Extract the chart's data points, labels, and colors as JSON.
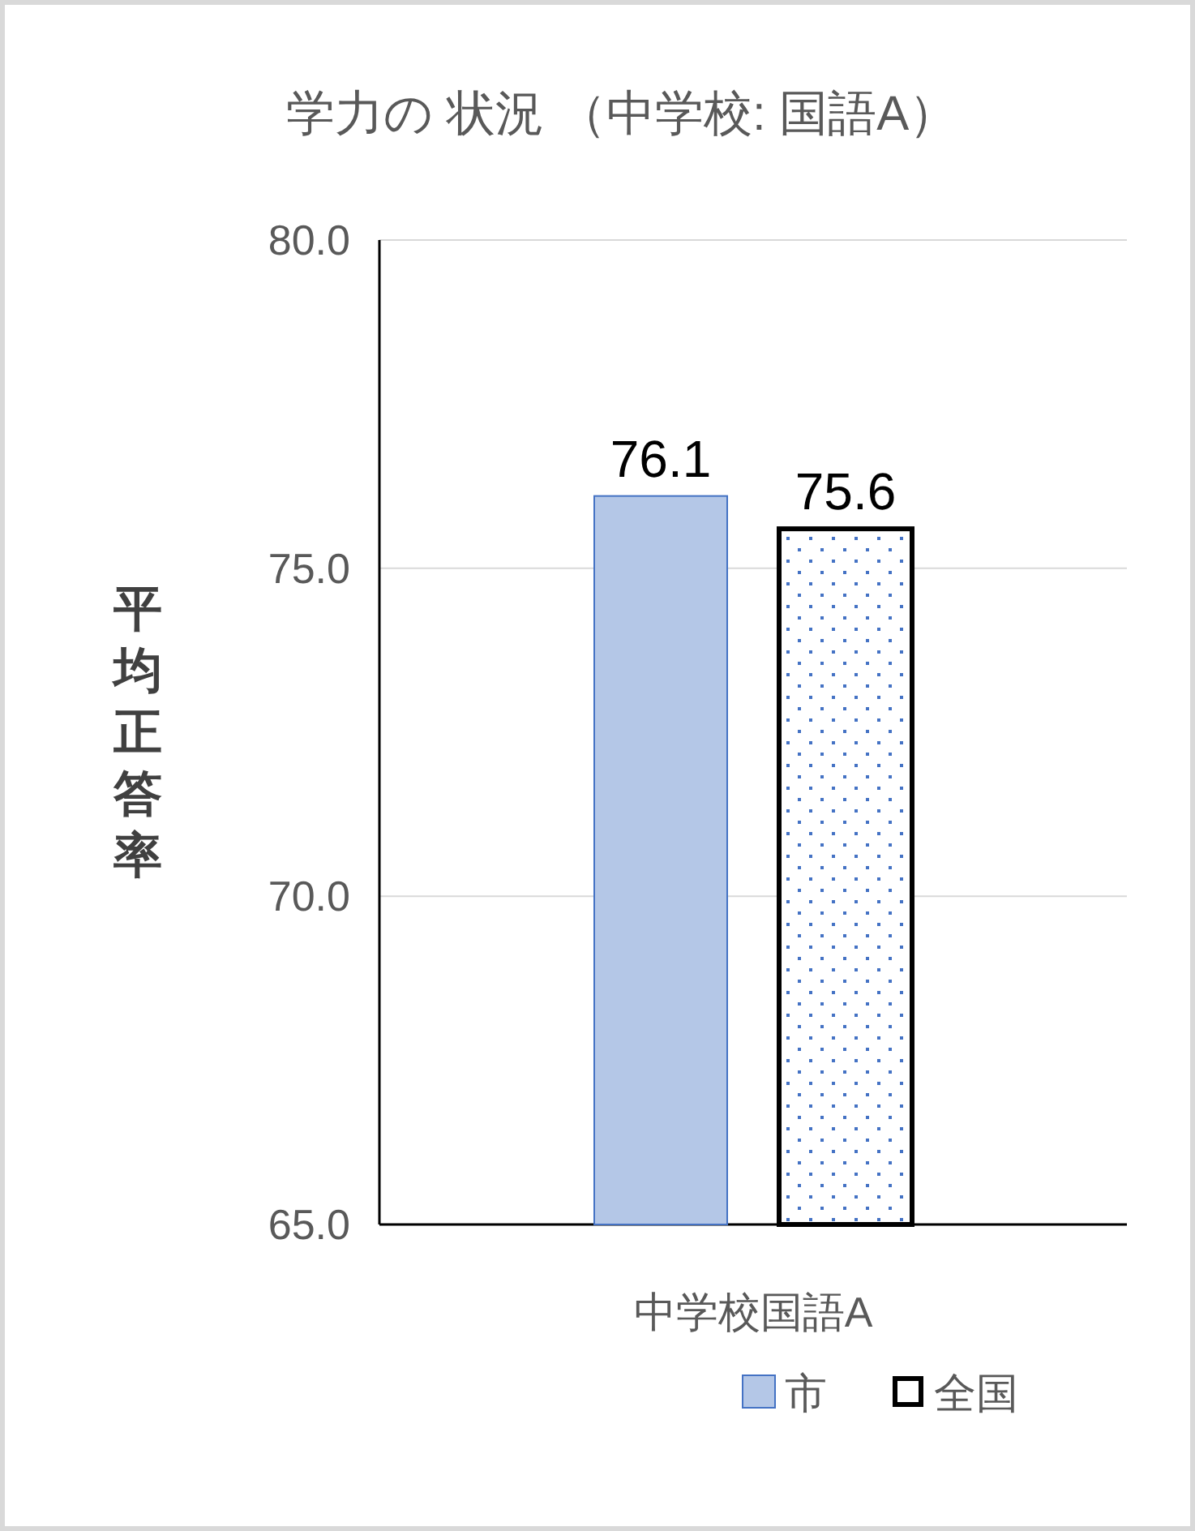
{
  "chart_data": {
    "type": "bar",
    "title": "学力の 状況 （中学校: 国語A）",
    "ylabel": "平均正答率",
    "categories": [
      "中学校国語A"
    ],
    "series": [
      {
        "name": "市",
        "color": "#b4c7e7",
        "values": [
          76.1
        ]
      },
      {
        "name": "全国",
        "color": "#000000",
        "values": [
          75.6
        ]
      }
    ],
    "ylim": [
      65,
      80
    ],
    "yticks": [
      {
        "value": 65,
        "label": "65.0"
      },
      {
        "value": 70,
        "label": "70.0"
      },
      {
        "value": 75,
        "label": "75.0"
      },
      {
        "value": 80,
        "label": "80.0"
      }
    ],
    "grid": "y",
    "data_labels": true,
    "legend": "bottom"
  }
}
